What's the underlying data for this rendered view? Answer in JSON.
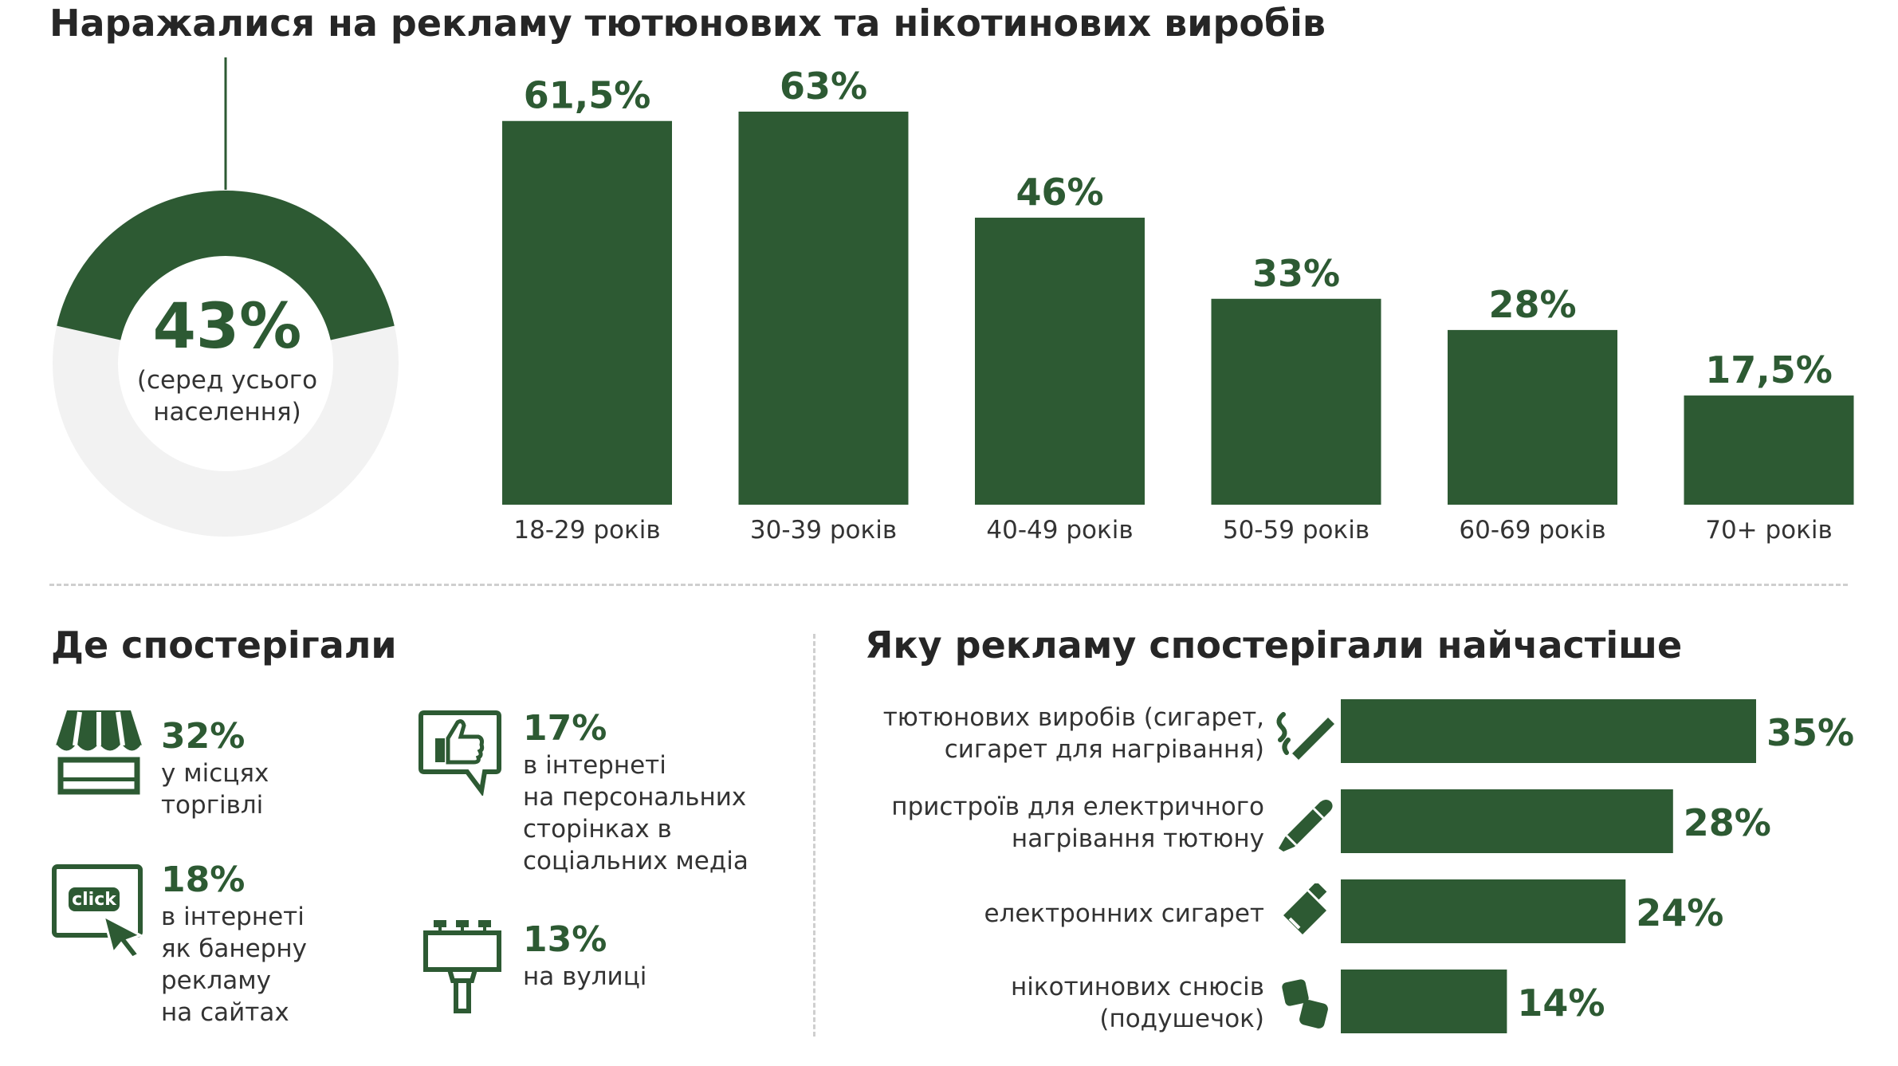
{
  "title": "Наражалися на рекламу тютюнових та нікотинових виробів",
  "overall": {
    "value": "43%",
    "caption": "(серед усього\nнаселення)",
    "fraction": 0.43
  },
  "colors": {
    "accent": "#2d5a33",
    "track": "#f2f2f2",
    "text": "#262626"
  },
  "chart_data": [
    {
      "type": "pie",
      "values": [
        43,
        57
      ],
      "labels": [
        "43%",
        ""
      ],
      "subtitle": "(серед усього населення)"
    },
    {
      "type": "bar",
      "categories": [
        "18-29 років",
        "30-39 років",
        "40-49 років",
        "50-59 років",
        "60-69 років",
        "70+ років"
      ],
      "values": [
        61.5,
        63,
        46,
        33,
        28,
        17.5
      ],
      "value_labels": [
        "61,5%",
        "63%",
        "46%",
        "33%",
        "28%",
        "17,5%"
      ],
      "ylim": [
        0,
        63
      ]
    },
    {
      "type": "bar",
      "orientation": "horizontal",
      "title": "Яку рекламу спостерігали найчастіше",
      "categories": [
        "тютюнових виробів (сигарет,\nсигарет для нагрівання)",
        "пристроїв для електричного\nнагрівання тютюну",
        "електронних сигарет",
        "нікотинових снюсів\n(подушечок)"
      ],
      "values": [
        35,
        28,
        24,
        14
      ],
      "value_labels": [
        "35%",
        "28%",
        "24%",
        "14%"
      ],
      "icons": [
        "cigarette-icon",
        "heated-tobacco-icon",
        "e-cigarette-icon",
        "snus-icon"
      ],
      "xlim": [
        0,
        35
      ]
    }
  ],
  "where": {
    "title": "Де спостерігали",
    "items": [
      {
        "pct": "32%",
        "text": "у місцях\nторгівлі",
        "icon": "shop-icon"
      },
      {
        "pct": "18%",
        "text": "в інтернеті\nяк банерну\nрекламу\nна сайтах",
        "icon": "click-icon",
        "icon_text": "click"
      },
      {
        "pct": "17%",
        "text": "в інтернеті\nна персональних\nсторінках в\nсоціальних медіа",
        "icon": "thumbs-up-icon"
      },
      {
        "pct": "13%",
        "text": "на вулиці",
        "icon": "billboard-icon"
      }
    ]
  },
  "ads_title": "Яку рекламу спостерігали найчастіше"
}
